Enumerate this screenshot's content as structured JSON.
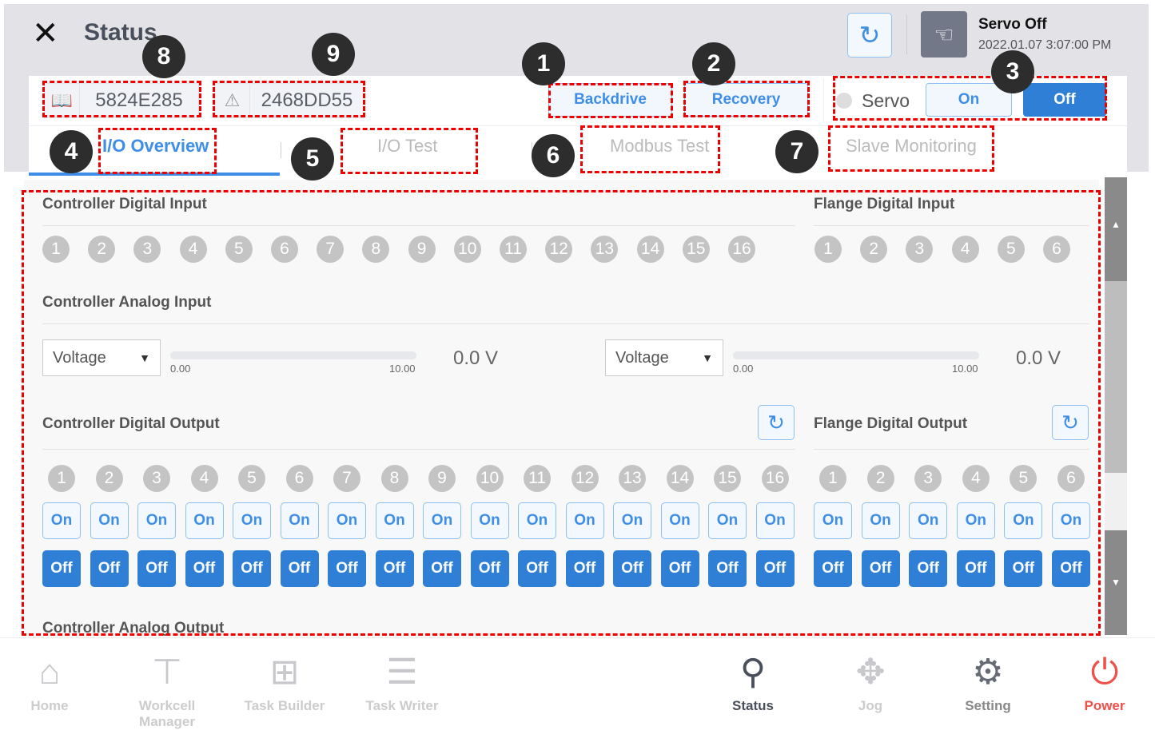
{
  "header": {
    "title": "Status",
    "servo_status": "Servo Off",
    "datetime": "2022.01.07 3:07:00 PM"
  },
  "ids": [
    {
      "icon": "book-icon",
      "value": "5824E285"
    },
    {
      "icon": "warning-icon",
      "value": "2468DD55"
    }
  ],
  "actions": {
    "backdrive": "Backdrive",
    "recovery": "Recovery",
    "servo_label": "Servo",
    "servo_on": "On",
    "servo_off": "Off",
    "servo_state": "off"
  },
  "tabs": [
    {
      "label": "I/O Overview",
      "active": true
    },
    {
      "label": "I/O Test"
    },
    {
      "label": "Modbus Test"
    },
    {
      "label": "Slave Monitoring"
    }
  ],
  "sections": {
    "cdi": "Controller Digital Input",
    "fdi": "Flange Digital Input",
    "cai": "Controller Analog Input",
    "cdo": "Controller Digital Output",
    "fdo": "Flange Digital Output",
    "cao": "Controller Analog Output"
  },
  "analog_inputs": [
    {
      "mode": "Voltage",
      "min": "0.00",
      "max": "10.00",
      "value": "0.0 V",
      "level": 0
    },
    {
      "mode": "Voltage",
      "min": "0.00",
      "max": "10.00",
      "value": "0.0 V",
      "level": 0
    }
  ],
  "controller_channels": 16,
  "flange_channels": 6,
  "output_labels": {
    "on": "On",
    "off": "Off"
  },
  "nav": [
    {
      "label": "Home",
      "icon": "home-icon",
      "glyph": "⌂"
    },
    {
      "label": "Workcell Manager",
      "icon": "workcell-icon",
      "glyph": "⊤"
    },
    {
      "label": "Task Builder",
      "icon": "task-builder-icon",
      "glyph": "⊞"
    },
    {
      "label": "Task Writer",
      "icon": "task-writer-icon",
      "glyph": "☰"
    },
    {
      "label": "Status",
      "icon": "status-icon",
      "glyph": "⚲",
      "active": true
    },
    {
      "label": "Jog",
      "icon": "jog-icon",
      "glyph": "✥"
    },
    {
      "label": "Setting",
      "icon": "gear-icon",
      "glyph": "⚙"
    },
    {
      "label": "Power",
      "icon": "power-icon",
      "glyph": "⏻"
    }
  ],
  "annotations": [
    "1",
    "2",
    "3",
    "4",
    "5",
    "6",
    "7",
    "8",
    "9"
  ],
  "colors": {
    "accent": "#2f7fd6",
    "annotation": "#e00000",
    "power": "#f0504a"
  }
}
